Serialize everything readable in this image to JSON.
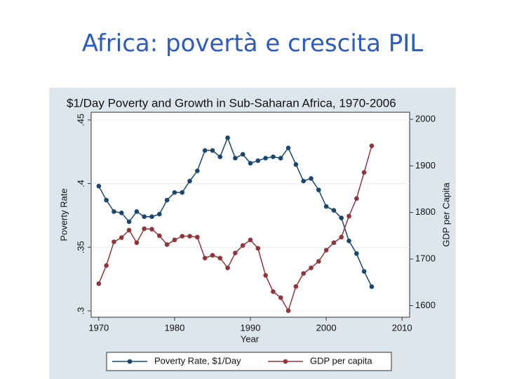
{
  "slide_title": "Africa: povertà e crescita PIL",
  "chart_data": {
    "type": "line",
    "title": "$1/Day Poverty and Growth in Sub-Saharan Africa, 1970-2006",
    "xlabel": "Year",
    "ylabel": "Poverty Rate",
    "y2label": "GDP per Capita",
    "x": [
      1970,
      1971,
      1972,
      1973,
      1974,
      1975,
      1976,
      1977,
      1978,
      1979,
      1980,
      1981,
      1982,
      1983,
      1984,
      1985,
      1986,
      1987,
      1988,
      1989,
      1990,
      1991,
      1992,
      1993,
      1994,
      1995,
      1996,
      1997,
      1998,
      1999,
      2000,
      2001,
      2002,
      2003,
      2004,
      2005,
      2006
    ],
    "series": [
      {
        "name": "Poverty Rate, $1/Day",
        "color": "#1a476f",
        "values": [
          0.398,
          0.387,
          0.378,
          0.377,
          0.37,
          0.378,
          0.374,
          0.374,
          0.376,
          0.387,
          0.393,
          0.393,
          0.402,
          0.41,
          0.426,
          0.426,
          0.421,
          0.436,
          0.42,
          0.423,
          0.416,
          0.418,
          0.42,
          0.421,
          0.42,
          0.428,
          0.415,
          0.402,
          0.404,
          0.395,
          0.382,
          0.379,
          0.373,
          0.355,
          0.345,
          0.331,
          0.319
        ]
      },
      {
        "name": "GDP per capita",
        "color": "#90353b",
        "axis": "y2",
        "values": [
          1647,
          1686,
          1737,
          1746,
          1762,
          1735,
          1765,
          1764,
          1750,
          1731,
          1741,
          1749,
          1749,
          1747,
          1702,
          1708,
          1702,
          1681,
          1713,
          1729,
          1741,
          1723,
          1665,
          1630,
          1617,
          1589,
          1641,
          1669,
          1681,
          1695,
          1719,
          1735,
          1747,
          1792,
          1830,
          1886,
          1943
        ]
      }
    ],
    "xlim": [
      1969,
      2011
    ],
    "xticks": [
      1970,
      1980,
      1990,
      2000,
      2010
    ],
    "ylim": [
      0.295,
      0.456
    ],
    "yticks": [
      {
        "value": 0.3,
        "label": ".3"
      },
      {
        "value": 0.35,
        "label": ".35"
      },
      {
        "value": 0.4,
        "label": ".4"
      },
      {
        "value": 0.45,
        "label": ".45"
      }
    ],
    "y2lim": [
      1575,
      2015
    ],
    "y2ticks": [
      1600,
      1700,
      1800,
      1900,
      2000
    ],
    "grid": true,
    "legend": "bottom"
  }
}
